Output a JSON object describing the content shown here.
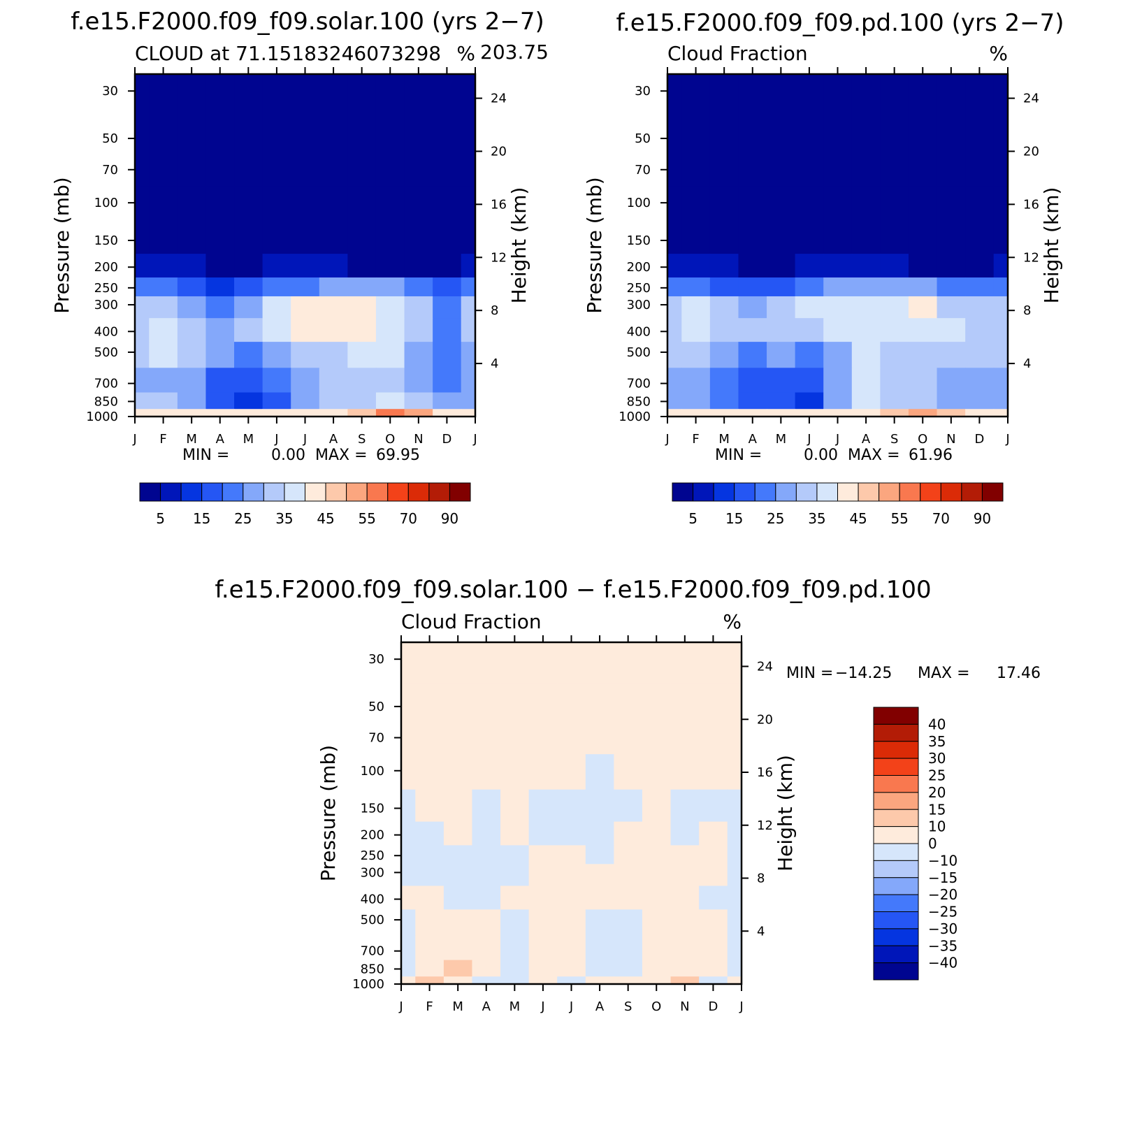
{
  "colors": {
    "abs_levels": [
      "#000590",
      "#0016b9",
      "#0535e0",
      "#2556f4",
      "#4479fb",
      "#84a8fa",
      "#b4cafa",
      "#d6e6fb",
      "#feebdc",
      "#fdc9ab",
      "#fba67f",
      "#f9784f",
      "#f34219",
      "#db2b07",
      "#b31c06",
      "#810000"
    ],
    "diff_levels": [
      "#000590",
      "#0016b9",
      "#0535e0",
      "#2556f4",
      "#4479fb",
      "#84a8fa",
      "#b4cafa",
      "#d6e6fb",
      "#feebdc",
      "#fdc9ab",
      "#fba67f",
      "#f9784f",
      "#f34219",
      "#db2b07",
      "#b31c06",
      "#810000"
    ]
  },
  "chart_data": [
    {
      "type": "heatmap",
      "title": "f.e15.F2000.f09_f09.solar.100 (yrs 2−7)",
      "subtitle_left": "CLOUD at 71.15183246073298",
      "subtitle_right": "%",
      "subtitle_extra": "203.75",
      "ylabel": "Pressure (mb)",
      "y2label": "Height (km)",
      "x_ticks": [
        "J",
        "F",
        "M",
        "A",
        "M",
        "J",
        "J",
        "A",
        "S",
        "O",
        "N",
        "D",
        "J"
      ],
      "y_ticks": [
        "30",
        "50",
        "70",
        "100",
        "150",
        "200",
        "250",
        "300",
        "400",
        "500",
        "700",
        "850",
        "1000"
      ],
      "y2_ticks": [
        "24",
        "20",
        "16",
        "12",
        "8",
        "4"
      ],
      "min_label": "MIN =",
      "min_value": "0.00",
      "max_label": "MAX =",
      "max_value": "69.95",
      "colorbar_labels": [
        "5",
        "15",
        "25",
        "35",
        "45",
        "55",
        "70",
        "90"
      ],
      "grid": [
        [
          0,
          0,
          0,
          0,
          0,
          0,
          0,
          0,
          0,
          0,
          0,
          0,
          0
        ],
        [
          0,
          0,
          0,
          0,
          0,
          0,
          0,
          0,
          0,
          0,
          0,
          0,
          0
        ],
        [
          0,
          0,
          0,
          0,
          0,
          0,
          0,
          0,
          0,
          0,
          0,
          0,
          0
        ],
        [
          0,
          0,
          0,
          0,
          0,
          0,
          0,
          0,
          0,
          0,
          0,
          0,
          0
        ],
        [
          0,
          0,
          0,
          0,
          0,
          0,
          0,
          0,
          0,
          0,
          0,
          0,
          0
        ],
        [
          1,
          1,
          1,
          0,
          0,
          1,
          1,
          1,
          0,
          0,
          0,
          0,
          1
        ],
        [
          4,
          4,
          3,
          2,
          3,
          4,
          4,
          5,
          5,
          5,
          4,
          3,
          4
        ],
        [
          6,
          6,
          5,
          4,
          5,
          7,
          8,
          8,
          8,
          7,
          6,
          4,
          6
        ],
        [
          6,
          7,
          6,
          5,
          6,
          7,
          8,
          8,
          8,
          7,
          6,
          4,
          6
        ],
        [
          6,
          7,
          6,
          5,
          4,
          5,
          6,
          6,
          7,
          7,
          5,
          4,
          5
        ],
        [
          5,
          5,
          5,
          3,
          3,
          4,
          5,
          6,
          6,
          6,
          5,
          4,
          5
        ],
        [
          6,
          6,
          5,
          3,
          2,
          3,
          5,
          6,
          6,
          7,
          6,
          5,
          5
        ],
        [
          8,
          8,
          8,
          8,
          8,
          8,
          8,
          8,
          9,
          11,
          10,
          8,
          8
        ]
      ]
    },
    {
      "type": "heatmap",
      "title": "f.e15.F2000.f09_f09.pd.100 (yrs 2−7)",
      "subtitle_left": "Cloud Fraction",
      "subtitle_right": "%",
      "ylabel": "Pressure (mb)",
      "y2label": "Height (km)",
      "x_ticks": [
        "J",
        "F",
        "M",
        "A",
        "M",
        "J",
        "J",
        "A",
        "S",
        "O",
        "N",
        "D",
        "J"
      ],
      "y_ticks": [
        "30",
        "50",
        "70",
        "100",
        "150",
        "200",
        "250",
        "300",
        "400",
        "500",
        "700",
        "850",
        "1000"
      ],
      "y2_ticks": [
        "24",
        "20",
        "16",
        "12",
        "8",
        "4"
      ],
      "min_label": "MIN =",
      "min_value": "0.00",
      "max_label": "MAX =",
      "max_value": "61.96",
      "colorbar_labels": [
        "5",
        "15",
        "25",
        "35",
        "45",
        "55",
        "70",
        "90"
      ],
      "grid": [
        [
          0,
          0,
          0,
          0,
          0,
          0,
          0,
          0,
          0,
          0,
          0,
          0,
          0
        ],
        [
          0,
          0,
          0,
          0,
          0,
          0,
          0,
          0,
          0,
          0,
          0,
          0,
          0
        ],
        [
          0,
          0,
          0,
          0,
          0,
          0,
          0,
          0,
          0,
          0,
          0,
          0,
          0
        ],
        [
          0,
          0,
          0,
          0,
          0,
          0,
          0,
          0,
          0,
          0,
          0,
          0,
          0
        ],
        [
          0,
          0,
          0,
          0,
          0,
          0,
          0,
          0,
          0,
          0,
          0,
          0,
          0
        ],
        [
          1,
          1,
          1,
          0,
          0,
          1,
          1,
          1,
          1,
          0,
          0,
          0,
          1
        ],
        [
          4,
          4,
          3,
          3,
          3,
          4,
          5,
          5,
          5,
          5,
          4,
          4,
          4
        ],
        [
          6,
          7,
          6,
          5,
          6,
          7,
          7,
          7,
          7,
          8,
          6,
          6,
          6
        ],
        [
          6,
          7,
          6,
          6,
          6,
          6,
          7,
          7,
          7,
          7,
          7,
          6,
          6
        ],
        [
          6,
          6,
          5,
          4,
          5,
          4,
          5,
          7,
          6,
          6,
          6,
          6,
          6
        ],
        [
          5,
          5,
          4,
          3,
          3,
          3,
          5,
          7,
          6,
          6,
          5,
          5,
          5
        ],
        [
          5,
          5,
          4,
          3,
          3,
          2,
          5,
          7,
          6,
          6,
          5,
          5,
          5
        ],
        [
          8,
          8,
          8,
          8,
          8,
          8,
          8,
          8,
          9,
          10,
          9,
          8,
          8
        ]
      ]
    },
    {
      "type": "heatmap",
      "title": "f.e15.F2000.f09_f09.solar.100 − f.e15.F2000.f09_f09.pd.100",
      "subtitle_left": "Cloud Fraction",
      "subtitle_right": "%",
      "ylabel": "Pressure (mb)",
      "y2label": "Height (km)",
      "x_ticks": [
        "J",
        "F",
        "M",
        "A",
        "M",
        "J",
        "J",
        "A",
        "S",
        "O",
        "N",
        "D",
        "J"
      ],
      "y_ticks": [
        "30",
        "50",
        "70",
        "100",
        "150",
        "200",
        "250",
        "300",
        "400",
        "500",
        "700",
        "850",
        "1000"
      ],
      "y2_ticks": [
        "24",
        "20",
        "16",
        "12",
        "8",
        "4"
      ],
      "min_label": "MIN =",
      "min_value": "−14.25",
      "max_label": "MAX =",
      "max_value": "17.46",
      "colorbar_labels": [
        "40",
        "35",
        "30",
        "25",
        "20",
        "15",
        "10",
        "0",
        "−10",
        "−15",
        "−20",
        "−25",
        "−30",
        "−35",
        "−40"
      ],
      "grid": [
        [
          8,
          8,
          8,
          8,
          8,
          8,
          8,
          8,
          8,
          8,
          8,
          8,
          8
        ],
        [
          8,
          8,
          8,
          8,
          8,
          8,
          8,
          8,
          8,
          8,
          8,
          8,
          8
        ],
        [
          8,
          8,
          8,
          8,
          8,
          8,
          8,
          8,
          8,
          8,
          8,
          8,
          8
        ],
        [
          8,
          8,
          8,
          8,
          8,
          8,
          8,
          7,
          8,
          8,
          8,
          8,
          8
        ],
        [
          7,
          8,
          8,
          7,
          8,
          7,
          7,
          7,
          7,
          8,
          7,
          7,
          7
        ],
        [
          7,
          7,
          8,
          7,
          8,
          7,
          7,
          7,
          8,
          8,
          7,
          8,
          7
        ],
        [
          7,
          7,
          7,
          7,
          7,
          8,
          8,
          7,
          8,
          8,
          8,
          8,
          7
        ],
        [
          7,
          7,
          7,
          7,
          7,
          8,
          8,
          8,
          8,
          8,
          8,
          8,
          7
        ],
        [
          8,
          8,
          7,
          7,
          8,
          8,
          8,
          8,
          8,
          8,
          8,
          7,
          7
        ],
        [
          7,
          8,
          8,
          8,
          7,
          8,
          8,
          7,
          7,
          8,
          8,
          8,
          7
        ],
        [
          7,
          8,
          8,
          8,
          7,
          8,
          8,
          7,
          7,
          8,
          8,
          8,
          7
        ],
        [
          7,
          8,
          9,
          8,
          7,
          8,
          8,
          7,
          7,
          8,
          8,
          8,
          7
        ],
        [
          8,
          9,
          8,
          7,
          7,
          8,
          7,
          8,
          8,
          8,
          9,
          7,
          8
        ]
      ]
    }
  ]
}
